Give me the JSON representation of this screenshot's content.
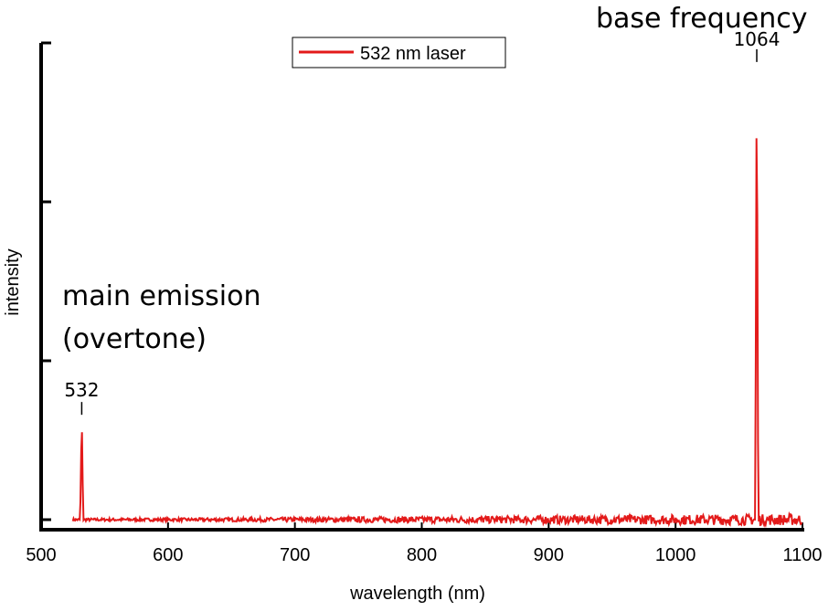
{
  "chart_data": {
    "type": "line",
    "xlabel": "wavelength (nm)",
    "ylabel": "intensity",
    "xlim": [
      500,
      1100
    ],
    "ylim": [
      0,
      1.0
    ],
    "xticks": [
      "500",
      "600",
      "700",
      "800",
      "900",
      "1000",
      "1100"
    ],
    "yticks_labeled": false,
    "grid": false,
    "legend": {
      "position": "top-center",
      "entries": [
        "532 nm laser"
      ]
    },
    "series": [
      {
        "name": "532 nm laser",
        "color": "#e31a1a",
        "x_range": [
          525,
          1100
        ],
        "baseline": 0.0,
        "peaks": [
          {
            "x": 532,
            "y": 0.22
          },
          {
            "x": 1064,
            "y": 0.96
          }
        ]
      }
    ],
    "annotations": {
      "main_emission_line1": "main emission",
      "main_emission_line2": "(overtone)",
      "base_frequency": "base frequency",
      "peak1_label": "532",
      "peak2_label": "1064"
    }
  }
}
